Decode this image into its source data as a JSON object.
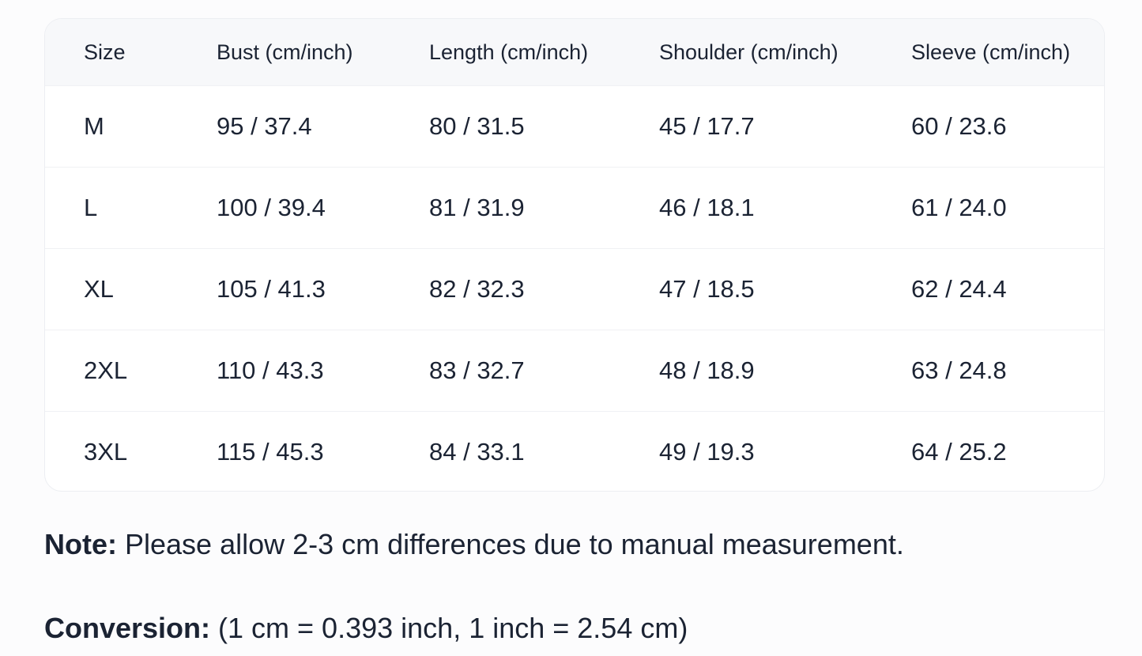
{
  "table": {
    "headers": [
      "Size",
      "Bust (cm/inch)",
      "Length (cm/inch)",
      "Shoulder (cm/inch)",
      "Sleeve (cm/inch)"
    ],
    "rows": [
      [
        "M",
        "95 / 37.4",
        "80 / 31.5",
        "45 / 17.7",
        "60 / 23.6"
      ],
      [
        "L",
        "100 / 39.4",
        "81 / 31.9",
        "46 / 18.1",
        "61 / 24.0"
      ],
      [
        "XL",
        "105 / 41.3",
        "82 / 32.3",
        "47 / 18.5",
        "62 / 24.4"
      ],
      [
        "2XL",
        "110 / 43.3",
        "83 / 32.7",
        "48 / 18.9",
        "63 / 24.8"
      ],
      [
        "3XL",
        "115 / 45.3",
        "84 / 33.1",
        "49 / 19.3",
        "64 / 25.2"
      ]
    ]
  },
  "note": {
    "label": "Note:",
    "text": " Please allow 2-3 cm differences due to manual measurement."
  },
  "conversion": {
    "label": "Conversion:",
    "text": " (1 cm = 0.393 inch, 1 inch = 2.54 cm)"
  }
}
